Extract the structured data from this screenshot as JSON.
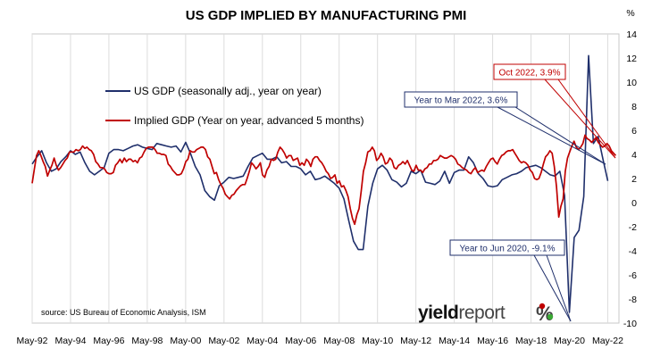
{
  "chart_data": {
    "type": "line",
    "title": "US GDP IMPLIED BY MANUFACTURING PMI",
    "y_unit": "%",
    "ylim": [
      -10,
      14
    ],
    "y_ticks": [
      "14",
      "12",
      "10",
      "8",
      "6",
      "4",
      "2",
      "0",
      "-2",
      "-4",
      "-6",
      "-8",
      "-10"
    ],
    "x_ticks": [
      "May-92",
      "May-94",
      "May-96",
      "May-98",
      "May-00",
      "May-02",
      "May-04",
      "May-06",
      "May-08",
      "May-10",
      "May-12",
      "May-14",
      "May-16",
      "May-18",
      "May-20",
      "May-22"
    ],
    "xlim": [
      "1992-05",
      "2022-12"
    ],
    "grid": "vertical",
    "legend_position": "top-left",
    "source": "source: US Bureau of Economic Analysis, ISM",
    "series": [
      {
        "name": "US GDP (seasonally adj., year on year)",
        "color": "#1F2F6B",
        "frequency": "quarterly",
        "x": [
          "1992-05",
          "1992-08",
          "1992-11",
          "1993-02",
          "1993-05",
          "1993-08",
          "1993-11",
          "1994-02",
          "1994-05",
          "1994-08",
          "1994-11",
          "1995-02",
          "1995-05",
          "1995-08",
          "1995-11",
          "1996-02",
          "1996-05",
          "1996-08",
          "1996-11",
          "1997-02",
          "1997-05",
          "1997-08",
          "1997-11",
          "1998-02",
          "1998-05",
          "1998-08",
          "1998-11",
          "1999-02",
          "1999-05",
          "1999-08",
          "1999-11",
          "2000-02",
          "2000-05",
          "2000-08",
          "2000-11",
          "2001-02",
          "2001-05",
          "2001-08",
          "2001-11",
          "2002-02",
          "2002-05",
          "2002-08",
          "2002-11",
          "2003-02",
          "2003-05",
          "2003-08",
          "2003-11",
          "2004-02",
          "2004-05",
          "2004-08",
          "2004-11",
          "2005-02",
          "2005-05",
          "2005-08",
          "2005-11",
          "2006-02",
          "2006-05",
          "2006-08",
          "2006-11",
          "2007-02",
          "2007-05",
          "2007-08",
          "2007-11",
          "2008-02",
          "2008-05",
          "2008-08",
          "2008-11",
          "2009-02",
          "2009-05",
          "2009-08",
          "2009-11",
          "2010-02",
          "2010-05",
          "2010-08",
          "2010-11",
          "2011-02",
          "2011-05",
          "2011-08",
          "2011-11",
          "2012-02",
          "2012-05",
          "2012-08",
          "2012-11",
          "2013-02",
          "2013-05",
          "2013-08",
          "2013-11",
          "2014-02",
          "2014-05",
          "2014-08",
          "2014-11",
          "2015-02",
          "2015-05",
          "2015-08",
          "2015-11",
          "2016-02",
          "2016-05",
          "2016-08",
          "2016-11",
          "2017-02",
          "2017-05",
          "2017-08",
          "2017-11",
          "2018-02",
          "2018-05",
          "2018-08",
          "2018-11",
          "2019-02",
          "2019-05",
          "2019-08",
          "2019-11",
          "2020-02",
          "2020-05",
          "2020-08",
          "2020-11",
          "2021-02",
          "2021-05",
          "2021-08",
          "2021-11",
          "2022-02",
          "2022-05"
        ],
        "values": [
          3.2,
          3.8,
          4.3,
          3.3,
          2.6,
          2.8,
          3.4,
          3.8,
          4.3,
          4.0,
          4.2,
          3.3,
          2.6,
          2.3,
          2.6,
          2.9,
          4.1,
          4.4,
          4.4,
          4.3,
          4.5,
          4.7,
          4.8,
          4.6,
          4.5,
          4.4,
          4.9,
          4.8,
          4.7,
          4.6,
          4.7,
          4.2,
          5.0,
          4.1,
          3.0,
          2.3,
          1.0,
          0.5,
          0.2,
          1.4,
          1.7,
          2.1,
          2.0,
          2.1,
          2.2,
          3.0,
          3.7,
          3.9,
          4.1,
          3.6,
          3.6,
          3.8,
          3.3,
          3.4,
          3.0,
          3.0,
          2.8,
          2.3,
          2.6,
          1.9,
          2.0,
          2.2,
          1.9,
          1.6,
          1.2,
          0.3,
          -1.5,
          -3.2,
          -3.9,
          -3.9,
          -0.3,
          1.6,
          2.8,
          3.1,
          2.7,
          1.9,
          1.7,
          1.3,
          1.6,
          2.6,
          2.4,
          2.7,
          1.7,
          1.6,
          1.5,
          1.8,
          2.6,
          1.6,
          2.5,
          2.7,
          2.7,
          3.8,
          3.3,
          2.4,
          2.0,
          1.4,
          1.3,
          1.4,
          1.9,
          2.1,
          2.3,
          2.4,
          2.6,
          2.9,
          3.0,
          3.1,
          2.9,
          2.6,
          2.3,
          2.2,
          2.6,
          0.6,
          -9.1,
          -2.9,
          -2.3,
          0.5,
          12.2,
          4.9,
          5.5,
          3.6,
          1.8
        ]
      },
      {
        "name": "Implied GDP (Year on year, advanced 5 months)",
        "color": "#C00000",
        "frequency": "monthly",
        "x_start": "1992-05",
        "x_end": "2022-10",
        "values": [
          1.6,
          2.8,
          3.9,
          4.3,
          3.9,
          3.4,
          3.0,
          2.2,
          2.7,
          3.1,
          3.7,
          3.1,
          2.7,
          2.9,
          3.2,
          3.5,
          3.7,
          4.2,
          4.2,
          4.2,
          4.4,
          4.3,
          4.4,
          4.7,
          4.5,
          4.6,
          4.4,
          4.3,
          4.0,
          3.4,
          3.2,
          2.9,
          2.9,
          2.8,
          2.5,
          2.4,
          2.4,
          2.5,
          3.1,
          3.3,
          3.6,
          3.3,
          3.7,
          3.4,
          3.6,
          3.6,
          3.4,
          3.5,
          3.3,
          3.7,
          3.8,
          4.2,
          4.5,
          4.6,
          4.6,
          4.6,
          4.4,
          4.1,
          4.1,
          4.0,
          4.0,
          3.9,
          3.2,
          3.0,
          2.7,
          2.5,
          2.3,
          2.3,
          2.4,
          2.8,
          3.4,
          3.6,
          4.3,
          4.2,
          4.2,
          4.4,
          4.5,
          4.6,
          4.6,
          4.4,
          3.8,
          3.6,
          3.0,
          2.4,
          2.5,
          1.9,
          1.5,
          1.2,
          0.7,
          0.5,
          0.3,
          0.6,
          0.7,
          1.0,
          1.2,
          1.4,
          1.5,
          1.5,
          2.0,
          2.6,
          3.3,
          3.1,
          2.8,
          3.0,
          3.3,
          2.3,
          2.1,
          2.7,
          3.0,
          3.6,
          3.5,
          3.6,
          4.2,
          4.6,
          4.4,
          4.1,
          3.7,
          3.9,
          3.9,
          3.5,
          3.6,
          3.7,
          3.1,
          3.3,
          3.1,
          3.6,
          3.4,
          3.0,
          3.6,
          3.8,
          3.8,
          3.5,
          3.3,
          3.0,
          2.6,
          2.4,
          2.0,
          2.1,
          2.3,
          1.6,
          1.8,
          1.3,
          1.4,
          1.0,
          0.5,
          -0.5,
          -1.3,
          -1.8,
          -1.0,
          -0.5,
          1.0,
          2.6,
          3.3,
          4.2,
          4.3,
          4.6,
          4.3,
          3.5,
          3.7,
          4.1,
          3.8,
          3.2,
          3.3,
          3.7,
          3.5,
          2.9,
          2.8,
          3.1,
          3.2,
          3.4,
          3.2,
          3.5,
          3.1,
          2.7,
          2.6,
          3.1,
          2.7,
          2.7,
          2.5,
          2.8,
          2.9,
          3.2,
          3.2,
          3.5,
          3.5,
          3.6,
          3.9,
          3.8,
          3.7,
          3.7,
          3.8,
          3.9,
          3.8,
          3.6,
          3.2,
          3.1,
          2.9,
          2.8,
          2.7,
          2.5,
          2.4,
          2.7,
          2.9,
          2.5,
          2.6,
          2.7,
          2.6,
          3.0,
          3.3,
          3.6,
          3.7,
          3.4,
          3.2,
          3.6,
          3.9,
          4.0,
          4.2,
          4.3,
          4.3,
          4.4,
          4.1,
          3.8,
          3.5,
          3.3,
          3.4,
          3.3,
          3.1,
          2.7,
          2.5,
          2.0,
          1.9,
          2.0,
          2.5,
          3.2,
          3.8,
          4.0,
          4.3,
          4.1,
          3.0,
          1.3,
          -1.2,
          -0.3,
          0.3,
          2.6,
          3.7,
          4.2,
          4.7,
          5.1,
          4.6,
          4.4,
          4.6,
          4.9,
          5.6,
          5.3,
          5.2,
          5.0,
          5.2,
          5.4,
          5.0,
          4.8,
          4.6,
          4.7,
          4.9,
          4.7,
          4.3,
          4.1,
          3.9
        ]
      }
    ],
    "annotations": [
      {
        "text": "Oct 2022, 3.9%",
        "color": "#C00000"
      },
      {
        "text": "Year to Mar 2022, 3.6%",
        "color": "#1F2F6B"
      },
      {
        "text": "Year to Jun 2020, -9.1%",
        "color": "#1F2F6B"
      }
    ]
  },
  "logo": {
    "text_yield": "yield",
    "text_report": "report",
    "text_pct": "%"
  }
}
